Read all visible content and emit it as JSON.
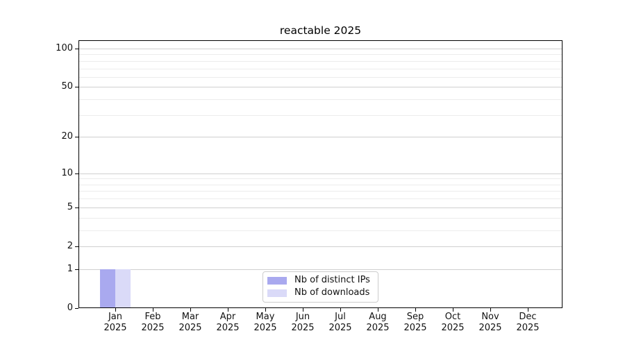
{
  "page": {
    "background": "#ffffff"
  },
  "chart_data": {
    "type": "bar",
    "title": "reactable 2025",
    "categories": [
      "Jan 2025",
      "Feb 2025",
      "Mar 2025",
      "Apr 2025",
      "May 2025",
      "Jun 2025",
      "Jul 2025",
      "Aug 2025",
      "Sep 2025",
      "Oct 2025",
      "Nov 2025",
      "Dec 2025"
    ],
    "series": [
      {
        "name": "Nb of distinct IPs",
        "color": "#a9a9ef",
        "values": [
          1,
          0,
          0,
          0,
          0,
          0,
          0,
          0,
          0,
          0,
          0,
          0
        ]
      },
      {
        "name": "Nb of downloads",
        "color": "#dadaf8",
        "values": [
          1,
          0,
          0,
          0,
          0,
          0,
          0,
          0,
          0,
          0,
          0,
          0
        ]
      }
    ],
    "xlabel": "",
    "ylabel": "",
    "y_axis": {
      "scale": "log1p",
      "ticks": [
        0,
        1,
        2,
        5,
        10,
        20,
        50,
        100
      ],
      "minor_gridlines": [
        3,
        4,
        6,
        7,
        8,
        9,
        30,
        40,
        60,
        70,
        80,
        90
      ],
      "ylim": [
        0,
        116
      ]
    },
    "grid": "horizontal",
    "legend_position": "bottom-center"
  },
  "style": {
    "major_grid_color": "#cfcfcf",
    "minor_grid_color": "#ececec",
    "axis_color": "#000000",
    "text_color": "#111111",
    "legend_border_color": "#cccccc"
  }
}
